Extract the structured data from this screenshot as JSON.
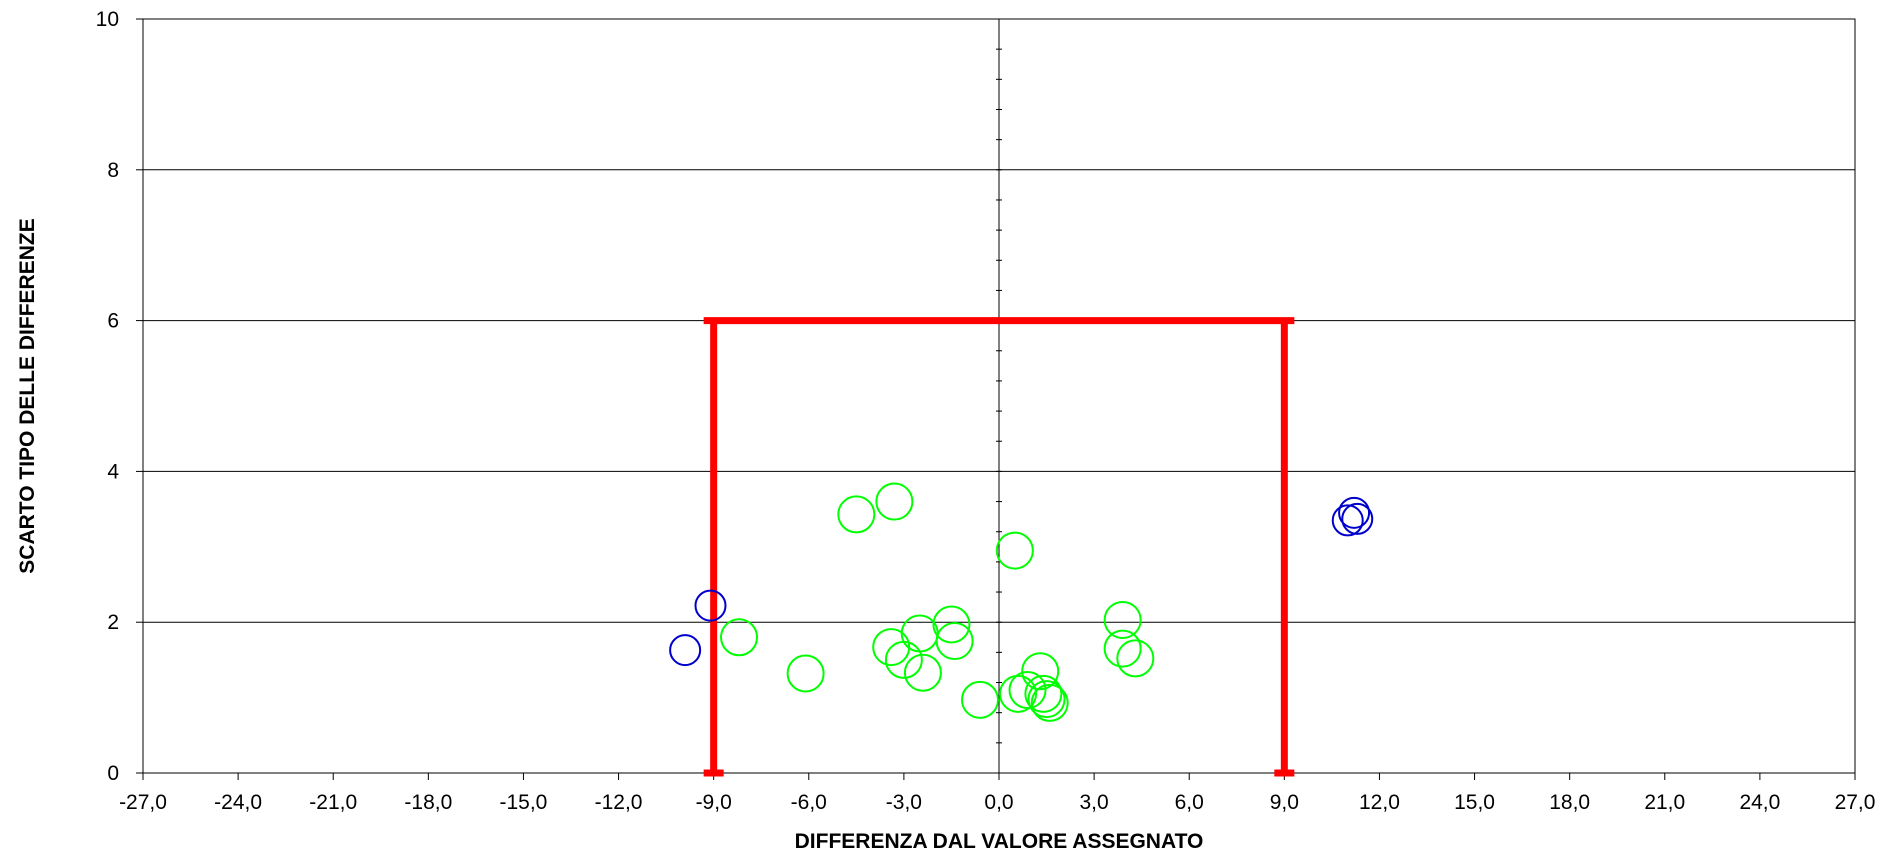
{
  "chart_data": {
    "type": "scatter",
    "xlabel": "DIFFERENZA DAL VALORE ASSEGNATO",
    "ylabel": "SCARTO TIPO DELLE DIFFERENZE",
    "xlim": [
      -27,
      27
    ],
    "ylim": [
      0,
      10
    ],
    "x_ticks": [
      -27,
      -24,
      -21,
      -18,
      -15,
      -12,
      -9,
      -6,
      -3,
      0,
      3,
      6,
      9,
      12,
      15,
      18,
      21,
      24,
      27
    ],
    "x_tick_labels": [
      "-27,0",
      "-24,0",
      "-21,0",
      "-18,0",
      "-15,0",
      "-12,0",
      "-9,0",
      "-6,0",
      "-3,0",
      "0,0",
      "3,0",
      "6,0",
      "9,0",
      "12,0",
      "15,0",
      "18,0",
      "21,0",
      "24,0",
      "27,0"
    ],
    "y_ticks": [
      0,
      2,
      4,
      6,
      8,
      10
    ],
    "y_tick_labels": [
      "0",
      "2",
      "4",
      "6",
      "8",
      "10"
    ],
    "grid": "horizontal",
    "limit_box": {
      "x_min": -9.0,
      "x_max": 9.0,
      "y_max": 6.0,
      "color": "#ff0000"
    },
    "series": [
      {
        "color": "#00ff00",
        "points": [
          {
            "x": -8.2,
            "y": 1.8
          },
          {
            "x": -6.1,
            "y": 1.32
          },
          {
            "x": -4.5,
            "y": 3.43
          },
          {
            "x": -3.3,
            "y": 3.6
          },
          {
            "x": -3.4,
            "y": 1.67
          },
          {
            "x": -3.0,
            "y": 1.5
          },
          {
            "x": -2.5,
            "y": 1.85
          },
          {
            "x": -2.4,
            "y": 1.33
          },
          {
            "x": -1.5,
            "y": 1.97
          },
          {
            "x": -1.4,
            "y": 1.75
          },
          {
            "x": -0.6,
            "y": 0.97
          },
          {
            "x": 0.5,
            "y": 2.95
          },
          {
            "x": 0.6,
            "y": 1.05
          },
          {
            "x": 0.9,
            "y": 1.1
          },
          {
            "x": 1.3,
            "y": 1.35
          },
          {
            "x": 1.4,
            "y": 1.05
          },
          {
            "x": 1.5,
            "y": 0.98
          },
          {
            "x": 1.6,
            "y": 0.93
          },
          {
            "x": 3.9,
            "y": 2.03
          },
          {
            "x": 3.9,
            "y": 1.65
          },
          {
            "x": 4.3,
            "y": 1.52
          }
        ]
      },
      {
        "color": "#0000cc",
        "points": [
          {
            "x": -9.9,
            "y": 1.63
          },
          {
            "x": -9.1,
            "y": 2.22
          },
          {
            "x": 11.0,
            "y": 3.35
          },
          {
            "x": 11.3,
            "y": 3.37
          },
          {
            "x": 11.2,
            "y": 3.45
          }
        ]
      }
    ]
  }
}
